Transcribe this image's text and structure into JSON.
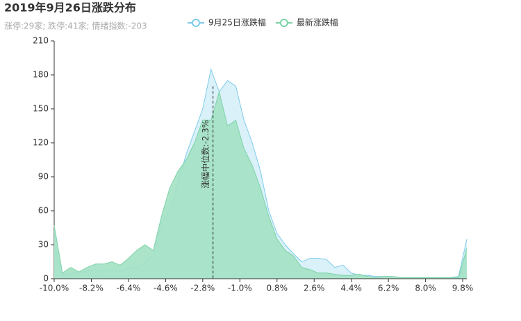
{
  "chart_data": {
    "type": "area",
    "title": "2019年9月26日涨跌分布",
    "subtitle": "涨停:29家; 跌停:41家; 情绪指数:-203",
    "x": [
      -10.0,
      -9.6,
      -9.2,
      -8.8,
      -8.4,
      -8.0,
      -7.6,
      -7.2,
      -6.8,
      -6.4,
      -6.0,
      -5.6,
      -5.2,
      -4.8,
      -4.4,
      -4.0,
      -3.6,
      -3.2,
      -2.8,
      -2.4,
      -2.0,
      -1.6,
      -1.2,
      -0.8,
      -0.4,
      0.0,
      0.4,
      0.8,
      1.2,
      1.6,
      2.0,
      2.4,
      2.8,
      3.2,
      3.6,
      4.0,
      4.4,
      4.8,
      5.2,
      5.6,
      6.0,
      6.4,
      6.8,
      7.2,
      7.6,
      8.0,
      8.4,
      8.8,
      9.2,
      9.6,
      10.0
    ],
    "series": [
      {
        "name": "9月25日涨跌幅",
        "color": "#7ecbea",
        "fill": "#d6eff8",
        "values": [
          30,
          3,
          5,
          5,
          7,
          8,
          6,
          8,
          6,
          10,
          10,
          15,
          20,
          50,
          60,
          85,
          110,
          130,
          150,
          185,
          165,
          175,
          170,
          140,
          120,
          95,
          60,
          40,
          30,
          22,
          15,
          18,
          18,
          17,
          10,
          12,
          5,
          3,
          3,
          2,
          2,
          2,
          1,
          1,
          1,
          1,
          1,
          1,
          1,
          2,
          35
        ]
      },
      {
        "name": "最新涨跌幅",
        "color": "#7dd3a8",
        "fill": "#a3e1c4",
        "values": [
          47,
          5,
          10,
          6,
          10,
          13,
          13,
          15,
          12,
          18,
          25,
          30,
          25,
          55,
          80,
          95,
          105,
          120,
          140,
          140,
          165,
          135,
          140,
          115,
          100,
          80,
          55,
          35,
          25,
          20,
          10,
          8,
          5,
          5,
          4,
          3,
          3,
          4,
          2,
          1,
          2,
          2,
          1,
          1,
          1,
          1,
          1,
          1,
          1,
          1,
          27
        ]
      }
    ],
    "markline": {
      "x": -2.3,
      "label": "涨幅中位数:-2.3%"
    },
    "xlim": [
      -10,
      10
    ],
    "xticks": [
      {
        "value": -10.0,
        "label": "-10.0%"
      },
      {
        "value": -8.2,
        "label": "-8.2%"
      },
      {
        "value": -6.4,
        "label": "-6.4%"
      },
      {
        "value": -4.6,
        "label": "-4.6%"
      },
      {
        "value": -2.8,
        "label": "-2.8%"
      },
      {
        "value": -1.0,
        "label": "-1.0%"
      },
      {
        "value": 0.8,
        "label": "0.8%"
      },
      {
        "value": 2.6,
        "label": "2.6%"
      },
      {
        "value": 4.4,
        "label": "4.4%"
      },
      {
        "value": 6.2,
        "label": "6.2%"
      },
      {
        "value": 8.0,
        "label": "8.0%"
      },
      {
        "value": 9.8,
        "label": "9.8%"
      }
    ],
    "ylim": [
      0,
      210
    ],
    "yticks": [
      0,
      30,
      60,
      90,
      120,
      150,
      180,
      210
    ]
  }
}
